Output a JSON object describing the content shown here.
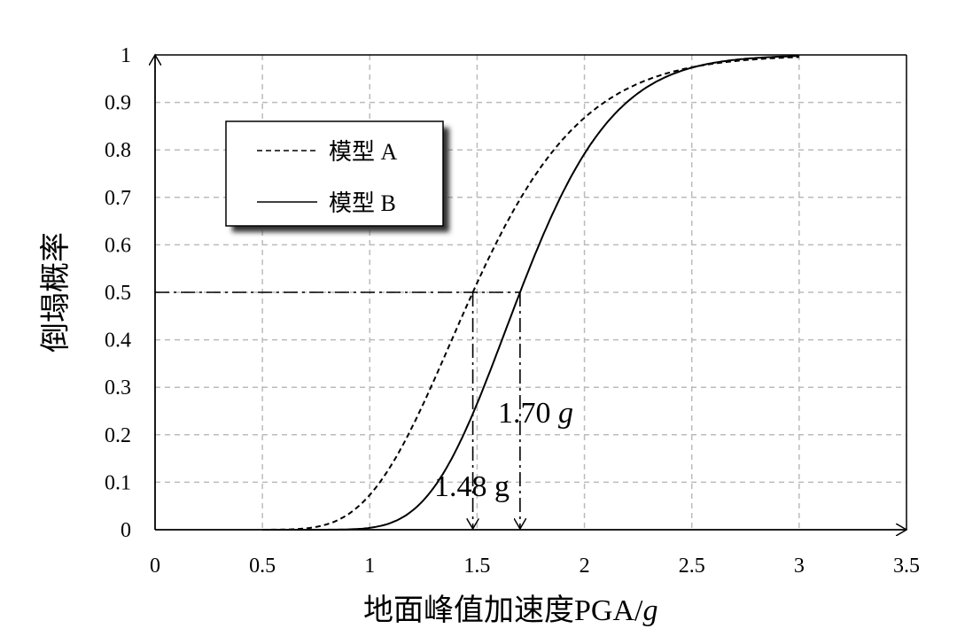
{
  "chart_data": {
    "type": "line",
    "title": "",
    "xlabel": "地面峰值加速度PGA/",
    "xlabel_italic": "g",
    "ylabel": "倒塌概率",
    "xlim": [
      0,
      3.5
    ],
    "ylim": [
      0,
      1
    ],
    "grid": true,
    "xticks": [
      "0",
      "0.5",
      "1",
      "1.5",
      "2",
      "2.5",
      "3",
      "3.5"
    ],
    "yticks": [
      "0",
      "0.1",
      "0.2",
      "0.3",
      "0.4",
      "0.5",
      "0.6",
      "0.7",
      "0.8",
      "0.9",
      "1"
    ],
    "legend_placement": "upper-left",
    "series": [
      {
        "name": "模型 A",
        "style": "dashed",
        "model": "lognormal CDF",
        "median": 1.48,
        "beta": 0.27,
        "x_range": [
          0.5,
          3.0
        ],
        "x": [
          0.5,
          0.75,
          1.0,
          1.25,
          1.48,
          1.75,
          2.0,
          2.25,
          2.5,
          2.75,
          3.0
        ],
        "y": [
          0.0,
          0.005,
          0.07,
          0.27,
          0.5,
          0.73,
          0.87,
          0.94,
          0.975,
          0.99,
          0.996
        ]
      },
      {
        "name": "模型 B",
        "style": "solid",
        "model": "lognormal CDF",
        "median": 1.7,
        "beta": 0.2,
        "x_range": [
          0.5,
          3.0
        ],
        "x": [
          0.5,
          0.75,
          1.0,
          1.25,
          1.5,
          1.7,
          2.0,
          2.25,
          2.5,
          2.75,
          3.0
        ],
        "y": [
          0.0,
          0.0,
          0.004,
          0.06,
          0.27,
          0.5,
          0.79,
          0.92,
          0.97,
          0.99,
          0.998
        ]
      }
    ],
    "reference_level": 0.5,
    "annotations": [
      {
        "x": 1.48,
        "text": "1.48 g"
      },
      {
        "x": 1.7,
        "text": "1.70 ",
        "italic": "g"
      }
    ]
  }
}
